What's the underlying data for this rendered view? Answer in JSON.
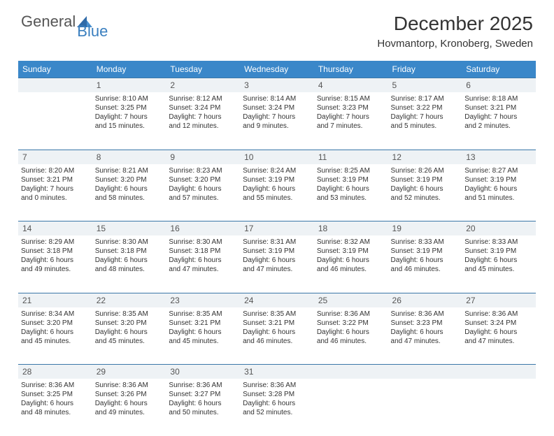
{
  "logo": {
    "general": "General",
    "blue": "Blue"
  },
  "title": "December 2025",
  "location": "Hovmantorp, Kronoberg, Sweden",
  "colors": {
    "header_bg": "#3a87c9",
    "daynum_bg": "#eef2f5",
    "daynum_border": "#3a77a8",
    "logo_blue": "#3a7fbf",
    "text": "#333333"
  },
  "day_headers": [
    "Sunday",
    "Monday",
    "Tuesday",
    "Wednesday",
    "Thursday",
    "Friday",
    "Saturday"
  ],
  "weeks": [
    {
      "nums": [
        "",
        "1",
        "2",
        "3",
        "4",
        "5",
        "6"
      ],
      "cells": [
        {
          "sunrise": "",
          "sunset": "",
          "daylight1": "",
          "daylight2": ""
        },
        {
          "sunrise": "Sunrise: 8:10 AM",
          "sunset": "Sunset: 3:25 PM",
          "daylight1": "Daylight: 7 hours",
          "daylight2": "and 15 minutes."
        },
        {
          "sunrise": "Sunrise: 8:12 AM",
          "sunset": "Sunset: 3:24 PM",
          "daylight1": "Daylight: 7 hours",
          "daylight2": "and 12 minutes."
        },
        {
          "sunrise": "Sunrise: 8:14 AM",
          "sunset": "Sunset: 3:24 PM",
          "daylight1": "Daylight: 7 hours",
          "daylight2": "and 9 minutes."
        },
        {
          "sunrise": "Sunrise: 8:15 AM",
          "sunset": "Sunset: 3:23 PM",
          "daylight1": "Daylight: 7 hours",
          "daylight2": "and 7 minutes."
        },
        {
          "sunrise": "Sunrise: 8:17 AM",
          "sunset": "Sunset: 3:22 PM",
          "daylight1": "Daylight: 7 hours",
          "daylight2": "and 5 minutes."
        },
        {
          "sunrise": "Sunrise: 8:18 AM",
          "sunset": "Sunset: 3:21 PM",
          "daylight1": "Daylight: 7 hours",
          "daylight2": "and 2 minutes."
        }
      ]
    },
    {
      "nums": [
        "7",
        "8",
        "9",
        "10",
        "11",
        "12",
        "13"
      ],
      "cells": [
        {
          "sunrise": "Sunrise: 8:20 AM",
          "sunset": "Sunset: 3:21 PM",
          "daylight1": "Daylight: 7 hours",
          "daylight2": "and 0 minutes."
        },
        {
          "sunrise": "Sunrise: 8:21 AM",
          "sunset": "Sunset: 3:20 PM",
          "daylight1": "Daylight: 6 hours",
          "daylight2": "and 58 minutes."
        },
        {
          "sunrise": "Sunrise: 8:23 AM",
          "sunset": "Sunset: 3:20 PM",
          "daylight1": "Daylight: 6 hours",
          "daylight2": "and 57 minutes."
        },
        {
          "sunrise": "Sunrise: 8:24 AM",
          "sunset": "Sunset: 3:19 PM",
          "daylight1": "Daylight: 6 hours",
          "daylight2": "and 55 minutes."
        },
        {
          "sunrise": "Sunrise: 8:25 AM",
          "sunset": "Sunset: 3:19 PM",
          "daylight1": "Daylight: 6 hours",
          "daylight2": "and 53 minutes."
        },
        {
          "sunrise": "Sunrise: 8:26 AM",
          "sunset": "Sunset: 3:19 PM",
          "daylight1": "Daylight: 6 hours",
          "daylight2": "and 52 minutes."
        },
        {
          "sunrise": "Sunrise: 8:27 AM",
          "sunset": "Sunset: 3:19 PM",
          "daylight1": "Daylight: 6 hours",
          "daylight2": "and 51 minutes."
        }
      ]
    },
    {
      "nums": [
        "14",
        "15",
        "16",
        "17",
        "18",
        "19",
        "20"
      ],
      "cells": [
        {
          "sunrise": "Sunrise: 8:29 AM",
          "sunset": "Sunset: 3:18 PM",
          "daylight1": "Daylight: 6 hours",
          "daylight2": "and 49 minutes."
        },
        {
          "sunrise": "Sunrise: 8:30 AM",
          "sunset": "Sunset: 3:18 PM",
          "daylight1": "Daylight: 6 hours",
          "daylight2": "and 48 minutes."
        },
        {
          "sunrise": "Sunrise: 8:30 AM",
          "sunset": "Sunset: 3:18 PM",
          "daylight1": "Daylight: 6 hours",
          "daylight2": "and 47 minutes."
        },
        {
          "sunrise": "Sunrise: 8:31 AM",
          "sunset": "Sunset: 3:19 PM",
          "daylight1": "Daylight: 6 hours",
          "daylight2": "and 47 minutes."
        },
        {
          "sunrise": "Sunrise: 8:32 AM",
          "sunset": "Sunset: 3:19 PM",
          "daylight1": "Daylight: 6 hours",
          "daylight2": "and 46 minutes."
        },
        {
          "sunrise": "Sunrise: 8:33 AM",
          "sunset": "Sunset: 3:19 PM",
          "daylight1": "Daylight: 6 hours",
          "daylight2": "and 46 minutes."
        },
        {
          "sunrise": "Sunrise: 8:33 AM",
          "sunset": "Sunset: 3:19 PM",
          "daylight1": "Daylight: 6 hours",
          "daylight2": "and 45 minutes."
        }
      ]
    },
    {
      "nums": [
        "21",
        "22",
        "23",
        "24",
        "25",
        "26",
        "27"
      ],
      "cells": [
        {
          "sunrise": "Sunrise: 8:34 AM",
          "sunset": "Sunset: 3:20 PM",
          "daylight1": "Daylight: 6 hours",
          "daylight2": "and 45 minutes."
        },
        {
          "sunrise": "Sunrise: 8:35 AM",
          "sunset": "Sunset: 3:20 PM",
          "daylight1": "Daylight: 6 hours",
          "daylight2": "and 45 minutes."
        },
        {
          "sunrise": "Sunrise: 8:35 AM",
          "sunset": "Sunset: 3:21 PM",
          "daylight1": "Daylight: 6 hours",
          "daylight2": "and 45 minutes."
        },
        {
          "sunrise": "Sunrise: 8:35 AM",
          "sunset": "Sunset: 3:21 PM",
          "daylight1": "Daylight: 6 hours",
          "daylight2": "and 46 minutes."
        },
        {
          "sunrise": "Sunrise: 8:36 AM",
          "sunset": "Sunset: 3:22 PM",
          "daylight1": "Daylight: 6 hours",
          "daylight2": "and 46 minutes."
        },
        {
          "sunrise": "Sunrise: 8:36 AM",
          "sunset": "Sunset: 3:23 PM",
          "daylight1": "Daylight: 6 hours",
          "daylight2": "and 47 minutes."
        },
        {
          "sunrise": "Sunrise: 8:36 AM",
          "sunset": "Sunset: 3:24 PM",
          "daylight1": "Daylight: 6 hours",
          "daylight2": "and 47 minutes."
        }
      ]
    },
    {
      "nums": [
        "28",
        "29",
        "30",
        "31",
        "",
        "",
        ""
      ],
      "cells": [
        {
          "sunrise": "Sunrise: 8:36 AM",
          "sunset": "Sunset: 3:25 PM",
          "daylight1": "Daylight: 6 hours",
          "daylight2": "and 48 minutes."
        },
        {
          "sunrise": "Sunrise: 8:36 AM",
          "sunset": "Sunset: 3:26 PM",
          "daylight1": "Daylight: 6 hours",
          "daylight2": "and 49 minutes."
        },
        {
          "sunrise": "Sunrise: 8:36 AM",
          "sunset": "Sunset: 3:27 PM",
          "daylight1": "Daylight: 6 hours",
          "daylight2": "and 50 minutes."
        },
        {
          "sunrise": "Sunrise: 8:36 AM",
          "sunset": "Sunset: 3:28 PM",
          "daylight1": "Daylight: 6 hours",
          "daylight2": "and 52 minutes."
        },
        {
          "sunrise": "",
          "sunset": "",
          "daylight1": "",
          "daylight2": ""
        },
        {
          "sunrise": "",
          "sunset": "",
          "daylight1": "",
          "daylight2": ""
        },
        {
          "sunrise": "",
          "sunset": "",
          "daylight1": "",
          "daylight2": ""
        }
      ]
    }
  ]
}
